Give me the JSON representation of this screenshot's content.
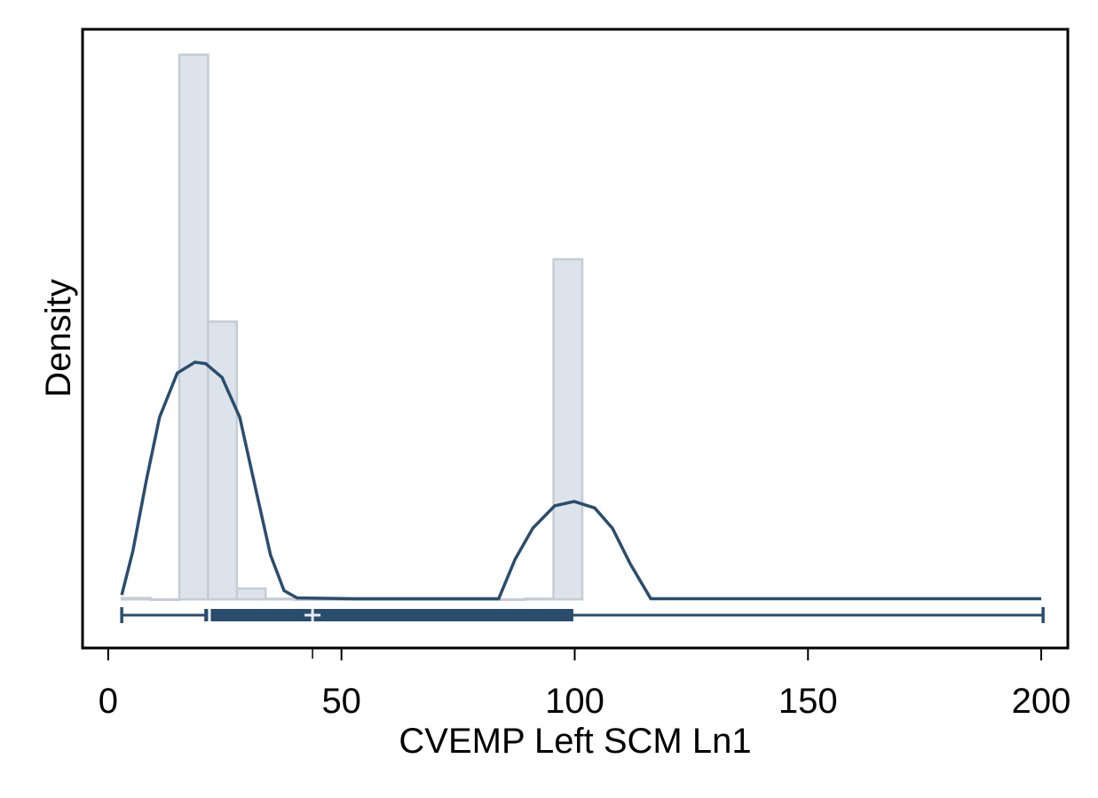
{
  "chart_data": {
    "type": "histogram",
    "x_label": "CVEMP Left SCM Ln1",
    "y_label": "Density",
    "xlim": [
      -5.5,
      205.7
    ],
    "ylim": [
      -0.0067,
      0.0786
    ],
    "xticks": [
      0,
      50,
      100,
      150,
      200
    ],
    "bins": [
      2.9,
      9.07,
      15.24,
      21.41,
      27.58,
      33.75,
      39.92,
      46.09,
      52.26,
      58.43,
      64.6,
      70.77,
      76.94,
      83.11,
      89.28,
      95.45,
      101.62
    ],
    "values": [
      0.0002,
      0,
      0.0751,
      0.0383,
      0.0015,
      0.0001,
      0,
      0,
      0,
      0,
      0,
      0,
      0,
      0,
      0.0001,
      0.0469
    ],
    "bar_color": "#dde3ea",
    "bar_edge_color": "#c3ccd7",
    "density": {
      "color": "#2a4d6e",
      "x": [
        2.9,
        5.3,
        8.2,
        11.0,
        14.8,
        18.6,
        20.9,
        24.4,
        28.2,
        32.0,
        34.8,
        37.7,
        40.5,
        52.9,
        83.7,
        87.2,
        91.0,
        95.7,
        99.9,
        104.3,
        108.1,
        111.9,
        116.3,
        200
      ],
      "y": [
        0.0006,
        0.0067,
        0.0165,
        0.0251,
        0.0312,
        0.0327,
        0.0325,
        0.0306,
        0.0251,
        0.0141,
        0.0061,
        0.0012,
        0.0002,
        0.0001,
        0.0001,
        0.0055,
        0.0098,
        0.0129,
        0.0135,
        0.0126,
        0.0098,
        0.0049,
        0.0001,
        0.0001
      ]
    },
    "boxplot": {
      "color": "#2a4d6e",
      "min": 2.9,
      "q1": 20.6,
      "median": 21.7,
      "q3": 99.7,
      "max": 200.4,
      "mean": 43.8
    }
  }
}
